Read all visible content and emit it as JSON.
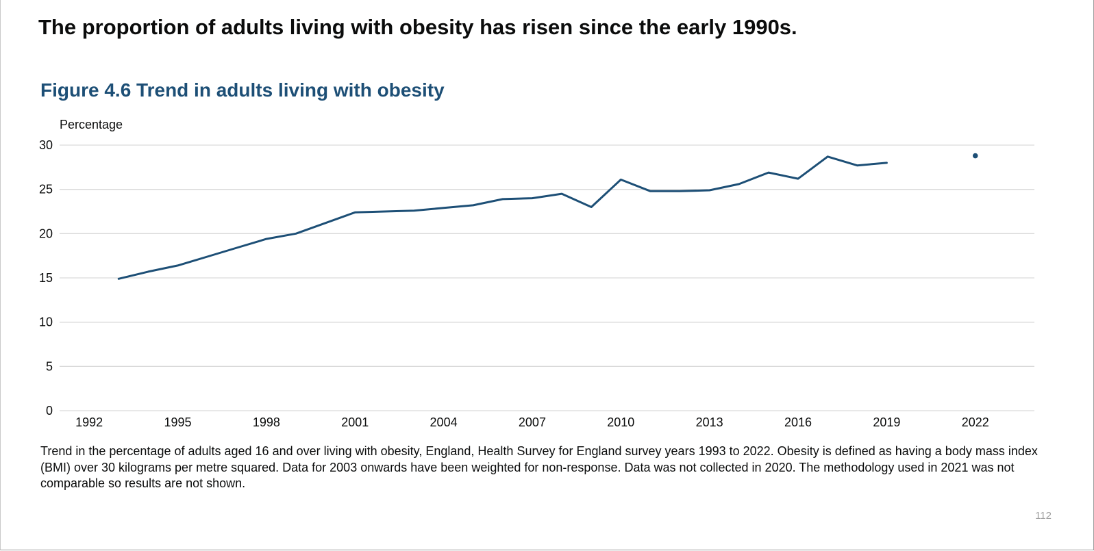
{
  "headline": "The proportion of adults living with obesity has risen since the early 1990s.",
  "figure_title": "Figure 4.6 Trend in adults living with obesity",
  "caption": "Trend in the percentage of adults aged 16 and over living with obesity, England, Health Survey for England survey years 1993 to 2022. Obesity is defined as having a body mass index (BMI) over 30 kilograms per metre squared. Data for 2003 onwards have been weighted for non-response. Data was not collected in 2020. The methodology used in 2021 was not comparable so results are not shown.",
  "page_number": "112",
  "colors": {
    "line": "#1d4f76",
    "gridline": "#d9d9d9",
    "figure_title": "#1d4f76"
  },
  "chart_data": {
    "type": "line",
    "title": "Figure 4.6 Trend in adults living with obesity",
    "xlabel": "",
    "ylabel": "Percentage",
    "ylim": [
      0,
      30
    ],
    "xlim": [
      1991,
      2024
    ],
    "yticks": [
      0,
      5,
      10,
      15,
      20,
      25,
      30
    ],
    "xticks": [
      1992,
      1995,
      1998,
      2001,
      2004,
      2007,
      2010,
      2013,
      2016,
      2019,
      2022
    ],
    "grid": true,
    "legend": "none",
    "series": [
      {
        "name": "Adults living with obesity (%)",
        "x": [
          1993,
          1994,
          1995,
          1996,
          1997,
          1998,
          1999,
          2000,
          2001,
          2002,
          2003,
          2004,
          2005,
          2006,
          2007,
          2008,
          2009,
          2010,
          2011,
          2012,
          2013,
          2014,
          2015,
          2016,
          2017,
          2018,
          2019
        ],
        "values": [
          14.9,
          15.7,
          16.4,
          17.4,
          18.4,
          19.4,
          20.0,
          21.2,
          22.4,
          22.5,
          22.6,
          22.9,
          23.2,
          23.9,
          24.0,
          24.5,
          23.0,
          26.1,
          24.8,
          24.8,
          24.9,
          25.6,
          26.9,
          26.2,
          28.7,
          27.7,
          28.0
        ]
      },
      {
        "name": "2022",
        "x": [
          2022
        ],
        "values": [
          28.8
        ],
        "marker": "point"
      }
    ]
  }
}
